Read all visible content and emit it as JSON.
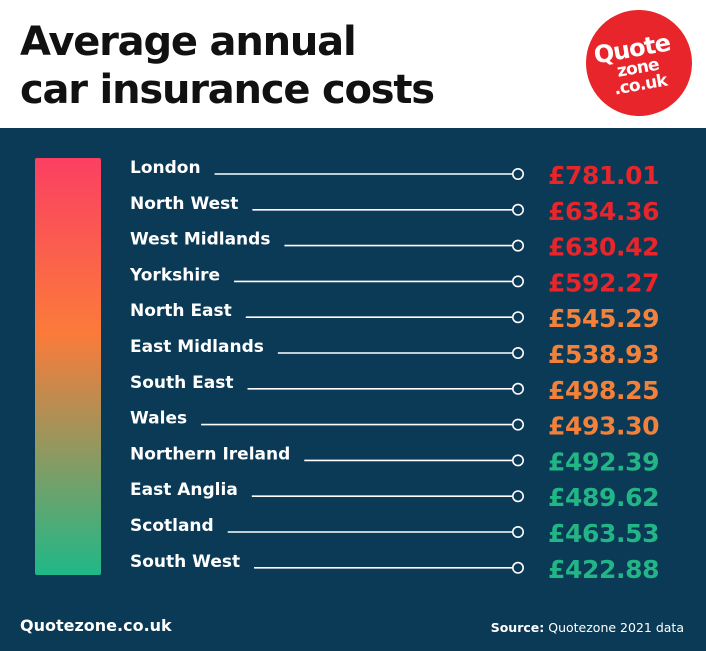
{
  "header": {
    "title_line1": "Average annual",
    "title_line2": "car insurance costs"
  },
  "logo": {
    "line1": "Quote",
    "line2": "zone",
    "line3": ".co.uk",
    "color": "#e8252b"
  },
  "footer": {
    "site": "Quotezone.co.uk",
    "source_label": "Source:",
    "source_text": "Quotezone 2021 data"
  },
  "colors": {
    "panel": "#0b3a56",
    "high": "#e8252b",
    "mid": "#f2813c",
    "low": "#22b585",
    "gradient_top": "#fb3f62",
    "gradient_mid": "#fb7b3a",
    "gradient_bottom": "#1fb888"
  },
  "chart_data": {
    "type": "table",
    "title": "Average annual car insurance costs",
    "unit": "£",
    "categories": [
      "London",
      "North West",
      "West Midlands",
      "Yorkshire",
      "North East",
      "East Midlands",
      "South East",
      "Wales",
      "Northern Ireland",
      "East Anglia",
      "Scotland",
      "South West"
    ],
    "values": [
      781.01,
      634.36,
      630.42,
      592.27,
      545.29,
      538.93,
      498.25,
      493.3,
      492.39,
      489.62,
      463.53,
      422.88
    ],
    "labels": [
      "£781.01",
      "£634.36",
      "£630.42",
      "£592.27",
      "£545.29",
      "£538.93",
      "£498.25",
      "£493.30",
      "£492.39",
      "£489.62",
      "£463.53",
      "£422.88"
    ],
    "value_colors": [
      "#e8252b",
      "#e8252b",
      "#e8252b",
      "#e8252b",
      "#f2813c",
      "#f2813c",
      "#f2813c",
      "#f2813c",
      "#22b585",
      "#22b585",
      "#22b585",
      "#22b585"
    ]
  }
}
